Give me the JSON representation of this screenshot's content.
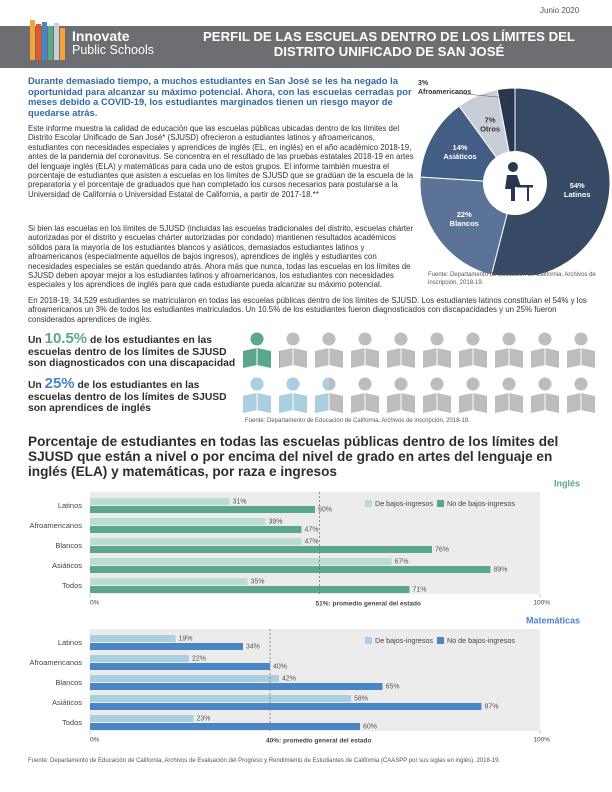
{
  "header": {
    "date": "Junio 2020",
    "logo": [
      "Innovate",
      "Public Schools"
    ],
    "title": "PERFIL DE LAS ESCUELAS DENTRO DE LOS LÍMITES DEL DISTRITO UNIFICADO DE SAN JOSÉ"
  },
  "intro": "Durante demasiado tiempo, a muchos estudiantes en San José se les ha negado la oportunidad para alcanzar su máximo potencial. Ahora, con las escuelas cerradas por meses debido a COVID-19, los estudiantes marginados tienen un riesgo mayor de quedarse atrás.",
  "body": [
    "Este informe muestra la calidad de educación que las escuelas públicas ubicadas dentro de los límites del Distrito Escolar Unificado de San José* (SJUSD) ofrecieron a estudiantes latinos y afroamericanos, estudiantes con necesidades especiales y aprendices de inglés (EL, en inglés) en el año académico 2018-19, antes de la pandemia del coronavirus. Se concentra en el resultado de las pruebas estatales 2018-19 en artes del lenguaje inglés (ELA) y matemáticas para cada uno de estos grupos. El informe también muestra el porcentaje de estudiantes que asisten a escuelas en los límites de SJUSD que se gradúan de la escuela de la preparatoria y el porcentaje de graduados que han completado los cursos necesarios para postularse a la Universidad de California o Universidad Estatal de California, a partir de 2017-18.**",
    "Si bien las escuelas en los límites de SJUSD (incluidas las escuelas tradicionales del distrito, escuelas chárter autorizadas por el distrito y escuelas chárter autorizadas por condado) mantienen resultados académicos sólidos para la mayoría de los estudiantes blancos y asiáticos, demasiados estudiantes latinos y afroamericanos (especialmente aquellos de bajos ingresos), aprendices de inglés y estudiantes con necesidades especiales se están quedando atrás. Ahora más que nunca, todas las escuelas en los límites de SJUSD deben apoyar mejor a los estudiantes latinos y afroamericanos, los estudiantes con necesidades especiales y los aprendices de inglés para que cada estudiante pueda alcanzar su máximo potencial.",
    "En 2018-19, 34,529 estudiantes se matricularon en todas las escuelas públicas dentro de los límites de SJUSD. Los estudiantes latinos constituían el 54% y los afroamericanos un 3% de todos los estudiantes matriculados. Un 10.5% de los estudiantes fueron diagnosticados con discapacidades y un 25% fueron considerados aprendices de inglés."
  ],
  "stats": [
    {
      "lead": "Un",
      "value": 10.5,
      "value_label": "10.5%",
      "text": "de los estudiantes en las escuelas dentro de los límites de SJUSD son diagnosticados con una discapacidad",
      "color": "#5aa88a"
    },
    {
      "lead": "Un",
      "value": 25,
      "value_label": "25%",
      "text": "de los estudiantes en las escuelas dentro de los límites de SJUSD son aprendices de inglés",
      "color": "#a9cfe0"
    }
  ],
  "stats_source": "Fuente: Departamento de Educación de California, Archivos de inscripción, 2018-19.",
  "bar_section": {
    "title": "Porcentaje de estudiantes en todas las escuelas públicas dentro de los límites del SJUSD que están a nivel o por encima del nivel de grado en artes del lenguaje en inglés (ELA) y matemáticas, por raza e ingresos",
    "source": "Fuente: Departamento de Educación de California, Archivos de Evaluación del Progreso y Rendimiento de Estudiantes de California (CAASPP por sus siglas en inglés), 2018-19."
  },
  "chart_data": [
    {
      "type": "pie",
      "source": "Fuente: Departamento de Educación de California, Archivos de inscripción, 2018-19.",
      "categories": [
        "Latinos",
        "Blancos",
        "Asiáticos",
        "Otros",
        "Afroamericanos"
      ],
      "values": [
        54,
        22,
        14,
        7,
        3
      ],
      "value_labels": [
        "54%",
        "22%",
        "14%",
        "7%",
        "3%"
      ],
      "colors": [
        "#364a66",
        "#5b7396",
        "#435e85",
        "#c8ced6",
        "#26374f"
      ]
    },
    {
      "type": "bar",
      "panel_label": "Inglés",
      "panel_label_color": "#5aa88a",
      "legend": "upper right",
      "categories": [
        "Latinos",
        "Afroamericanos",
        "Blancos",
        "Asiáticos",
        "Todos"
      ],
      "series": [
        {
          "name": "De bajos-ingresos",
          "color": "#b9ddd0",
          "values": [
            31,
            39,
            47,
            67,
            35
          ],
          "value_labels": [
            "31%",
            "39%",
            "47%",
            "67%",
            "35%"
          ]
        },
        {
          "name": "No de bajos-ingresos",
          "color": "#5aa88a",
          "values": [
            50,
            47,
            76,
            89,
            71
          ],
          "value_labels": [
            "50%",
            "47%",
            "76%",
            "89%",
            "71%"
          ]
        }
      ],
      "xlim": [
        0,
        100
      ],
      "xticks": [
        {
          "value": 0,
          "label": "0%"
        },
        {
          "value": 100,
          "label": "100%"
        }
      ],
      "reference_line": {
        "value": 51,
        "label": "51%: promedio general del estado"
      }
    },
    {
      "type": "bar",
      "panel_label": "Matemáticas",
      "panel_label_color": "#4a86c5",
      "legend": "upper right",
      "categories": [
        "Latinos",
        "Afroamericanos",
        "Blancos",
        "Asiáticos",
        "Todos"
      ],
      "series": [
        {
          "name": "De bajos-ingresos",
          "color": "#a9cfe0",
          "values": [
            19,
            22,
            42,
            58,
            23
          ],
          "value_labels": [
            "19%",
            "22%",
            "42%",
            "58%",
            "23%"
          ]
        },
        {
          "name": "No de bajos-ingresos",
          "color": "#4a86c5",
          "values": [
            34,
            40,
            65,
            87,
            60
          ],
          "value_labels": [
            "34%",
            "40%",
            "65%",
            "87%",
            "60%"
          ]
        }
      ],
      "xlim": [
        0,
        100
      ],
      "xticks": [
        {
          "value": 0,
          "label": "0%"
        },
        {
          "value": 100,
          "label": "100%"
        }
      ],
      "reference_line": {
        "value": 40,
        "label": "40%: promedio general del estado"
      }
    }
  ]
}
